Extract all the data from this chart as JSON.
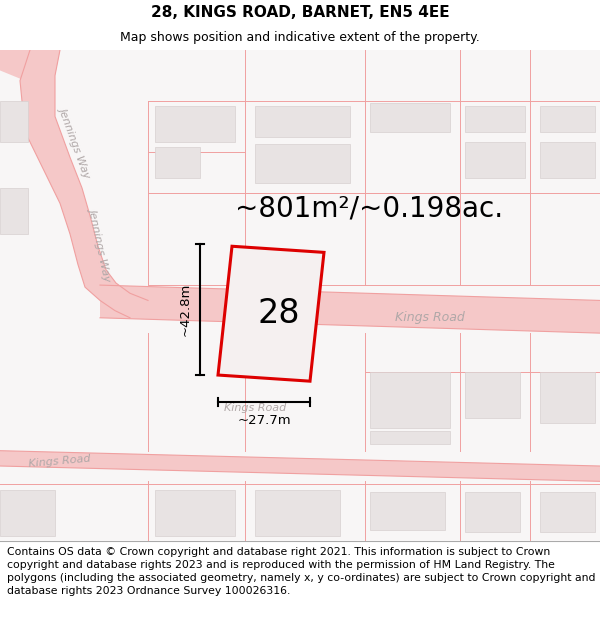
{
  "title": "28, KINGS ROAD, BARNET, EN5 4EE",
  "subtitle": "Map shows position and indicative extent of the property.",
  "area_label": "~801m²/~0.198ac.",
  "property_number": "28",
  "dim_width": "~27.7m",
  "dim_height": "~42.8m",
  "street_kings1": "Kings Road",
  "street_kings2": "Kings Road",
  "street_kings3": "Kings Road",
  "street_jennings1": "Jennings Way",
  "street_jennings2": "Jennings Way",
  "footer_text": "Contains OS data © Crown copyright and database right 2021. This information is subject to Crown copyright and database rights 2023 and is reproduced with the permission of HM Land Registry. The polygons (including the associated geometry, namely x, y co-ordinates) are subject to Crown copyright and database rights 2023 Ordnance Survey 100026316.",
  "map_bg": "#f8f6f6",
  "road_fill": "#f5c8c8",
  "road_line": "#f0a0a0",
  "building_fill": "#e8e3e3",
  "building_edge": "#d8d0d0",
  "highlight_red": "#dd0000",
  "prop_fill": "#f5f0f0",
  "street_color": "#c8b0b0",
  "street_color2": "#b0a8a8",
  "title_fontsize": 11,
  "subtitle_fontsize": 9,
  "footer_fontsize": 7.8,
  "area_fontsize": 20,
  "propnum_fontsize": 24,
  "dim_fontsize": 9.5,
  "street_fontsize": 9
}
